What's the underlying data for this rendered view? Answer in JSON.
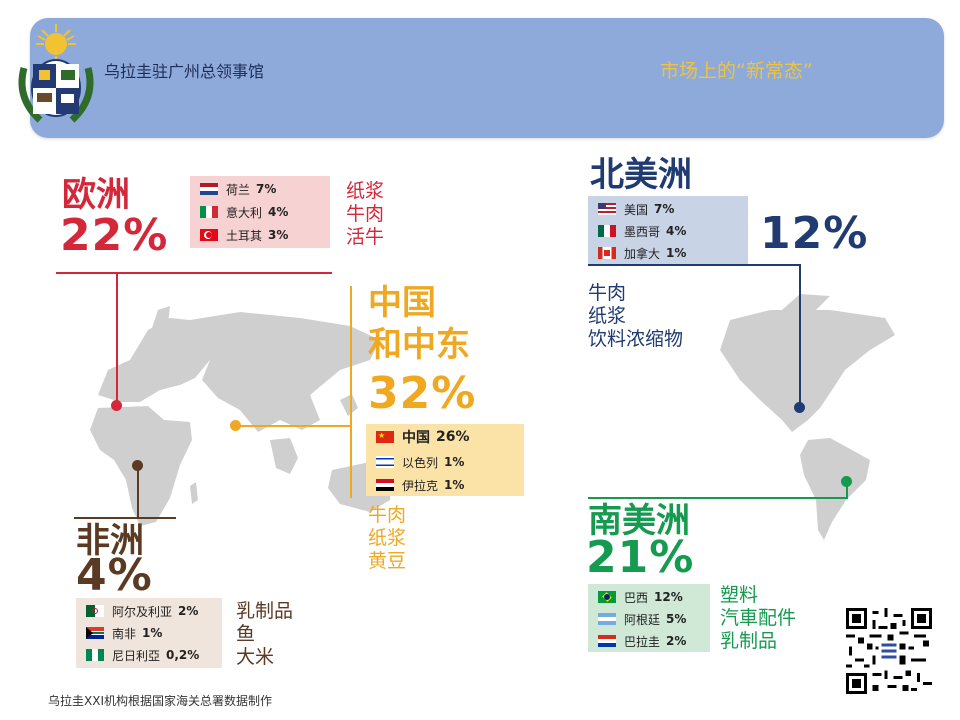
{
  "header": {
    "consulate": "乌拉圭驻广州总领事馆",
    "slogan": "市场上的“新常态”"
  },
  "colors": {
    "header_bg": "#8eaadb",
    "europe": "#d3283a",
    "china_me": "#f0a820",
    "north_america": "#1f3b72",
    "south_america": "#159a4f",
    "africa": "#5a3a22",
    "map": "#cfcfcf"
  },
  "regions": {
    "europe": {
      "title": "欧洲",
      "pct": "22%",
      "partners": [
        {
          "name": "荷兰",
          "value": "7%",
          "flag": "netherlands-flag-icon"
        },
        {
          "name": "意大利",
          "value": "4%",
          "flag": "italy-flag-icon"
        },
        {
          "name": "土耳其",
          "value": "3%",
          "flag": "turkey-flag-icon"
        }
      ],
      "products": [
        "纸浆",
        "牛肉",
        "活牛"
      ]
    },
    "china_me": {
      "title_line1": "中国",
      "title_line2": "和中东",
      "pct": "32%",
      "partners": [
        {
          "name": "中国",
          "value": "26%",
          "flag": "china-flag-icon"
        },
        {
          "name": "以色列",
          "value": "1%",
          "flag": "israel-flag-icon"
        },
        {
          "name": "伊拉克",
          "value": "1%",
          "flag": "iraq-flag-icon"
        }
      ],
      "products": [
        "牛肉",
        "纸浆",
        "黄豆"
      ]
    },
    "north_america": {
      "title": "北美洲",
      "pct": "12%",
      "partners": [
        {
          "name": "美国",
          "value": "7%",
          "flag": "usa-flag-icon"
        },
        {
          "name": "墨西哥",
          "value": "4%",
          "flag": "mexico-flag-icon"
        },
        {
          "name": "加拿大",
          "value": "1%",
          "flag": "canada-flag-icon"
        }
      ],
      "products": [
        "牛肉",
        "纸浆",
        "饮料浓缩物"
      ]
    },
    "south_america": {
      "title": "南美洲",
      "pct": "21%",
      "partners": [
        {
          "name": "巴西",
          "value": "12%",
          "flag": "brazil-flag-icon"
        },
        {
          "name": "阿根廷",
          "value": "5%",
          "flag": "argentina-flag-icon"
        },
        {
          "name": "巴拉圭",
          "value": "2%",
          "flag": "paraguay-flag-icon"
        }
      ],
      "products": [
        "塑料",
        "汽車配件",
        "乳制品"
      ]
    },
    "africa": {
      "title": "非洲",
      "pct": "4%",
      "partners": [
        {
          "name": "阿尔及利亚",
          "value": "2%",
          "flag": "algeria-flag-icon"
        },
        {
          "name": "南非",
          "value": "1%",
          "flag": "south-africa-flag-icon"
        },
        {
          "name": "尼日利亞",
          "value": "0,2%",
          "flag": "nigeria-flag-icon"
        }
      ],
      "products": [
        "乳制品",
        "鱼",
        "大米"
      ]
    }
  },
  "footnote": "乌拉圭XXI机构根据国家海关总署数据制作"
}
